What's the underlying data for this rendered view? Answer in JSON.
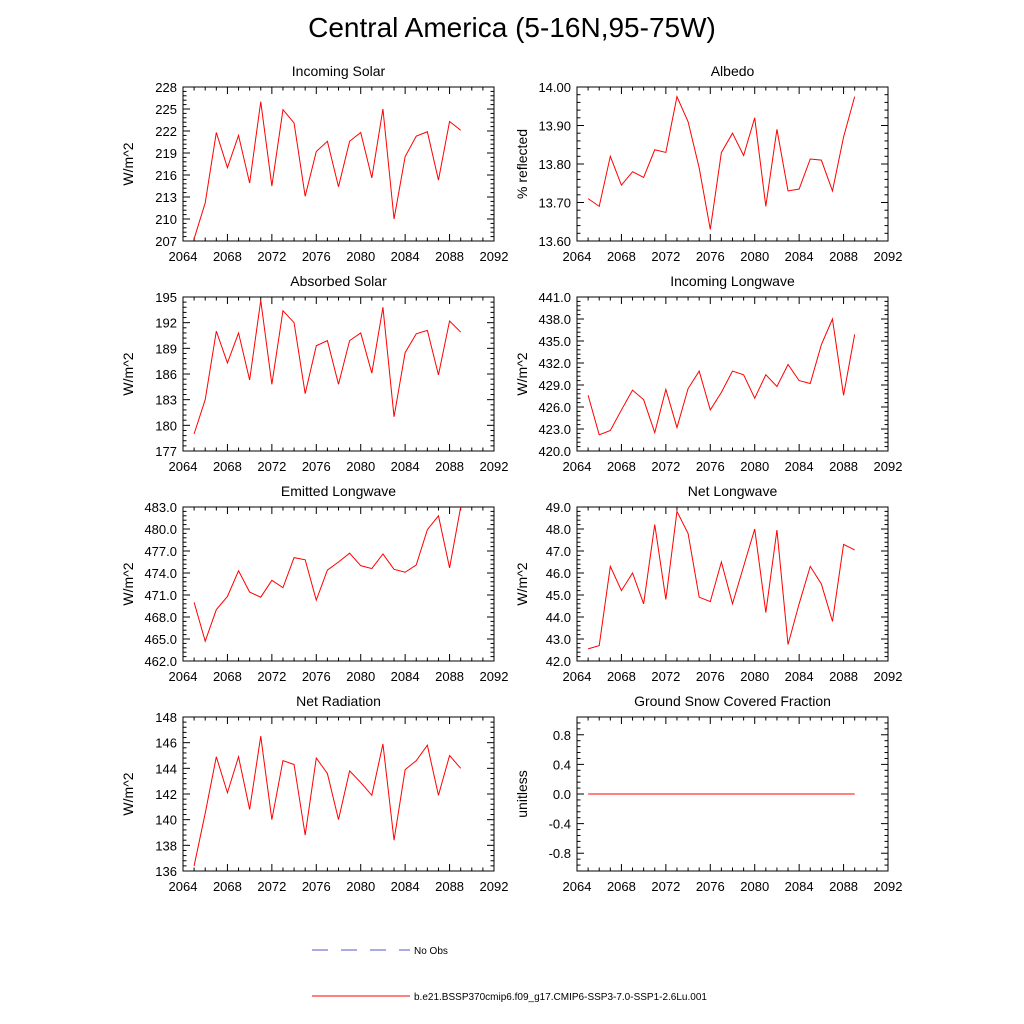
{
  "title": "Central America (5-16N,95-75W)",
  "colors": {
    "model": "#ff0000",
    "obs": "#5555cc",
    "axis": "#000000"
  },
  "legend": {
    "obs_label": "No Obs",
    "model_label": "b.e21.BSSP370cmip6.f09_g17.CMIP6-SSP3-7.0-SSP1-2.6Lu.001"
  },
  "chart_data": [
    {
      "type": "line",
      "title": "Incoming Solar",
      "ylabel": "W/m^2",
      "xlim": [
        2064,
        2092
      ],
      "ylim": [
        207,
        228
      ],
      "xticks": [
        2064,
        2068,
        2072,
        2076,
        2080,
        2084,
        2088,
        2092
      ],
      "yticks": [
        207,
        210,
        213,
        216,
        219,
        222,
        225,
        228
      ],
      "ytick_decimals": 0,
      "x": [
        2065,
        2066,
        2067,
        2068,
        2069,
        2070,
        2071,
        2072,
        2073,
        2074,
        2075,
        2076,
        2077,
        2078,
        2079,
        2080,
        2081,
        2082,
        2083,
        2084,
        2085,
        2086,
        2087,
        2088,
        2089
      ],
      "values": [
        207.3,
        212.2,
        221.8,
        217.0,
        221.4,
        214.9,
        226.0,
        214.5,
        224.9,
        223.1,
        213.1,
        219.2,
        220.6,
        214.4,
        220.6,
        221.8,
        215.6,
        225.0,
        210.0,
        218.5,
        221.3,
        221.9,
        215.3,
        223.3,
        222.1
      ]
    },
    {
      "type": "line",
      "title": "Albedo",
      "ylabel": "% reflected",
      "xlim": [
        2064,
        2092
      ],
      "ylim": [
        13.6,
        14.0
      ],
      "xticks": [
        2064,
        2068,
        2072,
        2076,
        2080,
        2084,
        2088,
        2092
      ],
      "yticks": [
        13.6,
        13.7,
        13.8,
        13.9,
        14.0
      ],
      "ytick_decimals": 2,
      "x": [
        2065,
        2066,
        2067,
        2068,
        2069,
        2070,
        2071,
        2072,
        2073,
        2074,
        2075,
        2076,
        2077,
        2078,
        2079,
        2080,
        2081,
        2082,
        2083,
        2084,
        2085,
        2086,
        2087,
        2088,
        2089
      ],
      "values": [
        13.71,
        13.69,
        13.82,
        13.745,
        13.78,
        13.765,
        13.837,
        13.83,
        13.975,
        13.91,
        13.79,
        13.63,
        13.83,
        13.88,
        13.822,
        13.92,
        13.69,
        13.89,
        13.73,
        13.735,
        13.813,
        13.81,
        13.73,
        13.87,
        13.975
      ]
    },
    {
      "type": "line",
      "title": "Absorbed Solar",
      "ylabel": "W/m^2",
      "xlim": [
        2064,
        2092
      ],
      "ylim": [
        177,
        195
      ],
      "xticks": [
        2064,
        2068,
        2072,
        2076,
        2080,
        2084,
        2088,
        2092
      ],
      "yticks": [
        177,
        180,
        183,
        186,
        189,
        192,
        195
      ],
      "ytick_decimals": 0,
      "x": [
        2065,
        2066,
        2067,
        2068,
        2069,
        2070,
        2071,
        2072,
        2073,
        2074,
        2075,
        2076,
        2077,
        2078,
        2079,
        2080,
        2081,
        2082,
        2083,
        2084,
        2085,
        2086,
        2087,
        2088,
        2089
      ],
      "values": [
        179.0,
        183.0,
        191.0,
        187.3,
        190.8,
        185.3,
        194.6,
        184.8,
        193.4,
        192.0,
        183.7,
        189.3,
        189.9,
        184.8,
        189.9,
        190.8,
        186.1,
        193.8,
        181.0,
        188.5,
        190.7,
        191.1,
        185.9,
        192.2,
        190.9
      ]
    },
    {
      "type": "line",
      "title": "Incoming Longwave",
      "ylabel": "W/m^2",
      "xlim": [
        2064,
        2092
      ],
      "ylim": [
        420.0,
        441.0
      ],
      "xticks": [
        2064,
        2068,
        2072,
        2076,
        2080,
        2084,
        2088,
        2092
      ],
      "yticks": [
        420,
        423,
        426,
        429,
        432,
        435,
        438,
        441
      ],
      "ytick_decimals": 1,
      "x": [
        2065,
        2066,
        2067,
        2068,
        2069,
        2070,
        2071,
        2072,
        2073,
        2074,
        2075,
        2076,
        2077,
        2078,
        2079,
        2080,
        2081,
        2082,
        2083,
        2084,
        2085,
        2086,
        2087,
        2088,
        2089
      ],
      "values": [
        427.6,
        422.2,
        422.8,
        425.6,
        428.3,
        427.0,
        422.5,
        428.4,
        423.2,
        428.5,
        430.9,
        425.6,
        428.0,
        430.9,
        430.4,
        427.2,
        430.4,
        428.8,
        431.8,
        429.6,
        429.2,
        434.5,
        438.0,
        427.6,
        435.9
      ]
    },
    {
      "type": "line",
      "title": "Emitted Longwave",
      "ylabel": "W/m^2",
      "xlim": [
        2064,
        2092
      ],
      "ylim": [
        462.0,
        483.0
      ],
      "xticks": [
        2064,
        2068,
        2072,
        2076,
        2080,
        2084,
        2088,
        2092
      ],
      "yticks": [
        462,
        465,
        468,
        471,
        474,
        477,
        480,
        483
      ],
      "ytick_decimals": 1,
      "x": [
        2065,
        2066,
        2067,
        2068,
        2069,
        2070,
        2071,
        2072,
        2073,
        2074,
        2075,
        2076,
        2077,
        2078,
        2079,
        2080,
        2081,
        2082,
        2083,
        2084,
        2085,
        2086,
        2087,
        2088,
        2089
      ],
      "values": [
        470.0,
        464.7,
        469.0,
        470.8,
        474.3,
        471.4,
        470.7,
        473.0,
        472.0,
        476.1,
        475.8,
        470.3,
        474.4,
        475.5,
        476.7,
        475.0,
        474.6,
        476.6,
        474.5,
        474.1,
        475.1,
        479.9,
        481.8,
        474.7,
        483.0
      ]
    },
    {
      "type": "line",
      "title": "Net Longwave",
      "ylabel": "W/m^2",
      "xlim": [
        2064,
        2092
      ],
      "ylim": [
        42.0,
        49.0
      ],
      "xticks": [
        2064,
        2068,
        2072,
        2076,
        2080,
        2084,
        2088,
        2092
      ],
      "yticks": [
        42,
        43,
        44,
        45,
        46,
        47,
        48,
        49
      ],
      "ytick_decimals": 1,
      "x": [
        2065,
        2066,
        2067,
        2068,
        2069,
        2070,
        2071,
        2072,
        2073,
        2074,
        2075,
        2076,
        2077,
        2078,
        2079,
        2080,
        2081,
        2082,
        2083,
        2084,
        2085,
        2086,
        2087,
        2088,
        2089
      ],
      "values": [
        42.55,
        42.7,
        46.3,
        45.2,
        46.0,
        44.6,
        48.2,
        44.8,
        48.8,
        47.8,
        44.9,
        44.7,
        46.5,
        44.6,
        46.3,
        48.0,
        44.2,
        47.95,
        42.75,
        44.6,
        46.3,
        45.5,
        43.8,
        47.3,
        47.05
      ]
    },
    {
      "type": "line",
      "title": "Net Radiation",
      "ylabel": "W/m^2",
      "xlim": [
        2064,
        2092
      ],
      "ylim": [
        136,
        148
      ],
      "xticks": [
        2064,
        2068,
        2072,
        2076,
        2080,
        2084,
        2088,
        2092
      ],
      "yticks": [
        136,
        138,
        140,
        142,
        144,
        146,
        148
      ],
      "ytick_decimals": 0,
      "x": [
        2065,
        2066,
        2067,
        2068,
        2069,
        2070,
        2071,
        2072,
        2073,
        2074,
        2075,
        2076,
        2077,
        2078,
        2079,
        2080,
        2081,
        2082,
        2083,
        2084,
        2085,
        2086,
        2087,
        2088,
        2089
      ],
      "values": [
        136.4,
        140.5,
        144.9,
        142.1,
        144.9,
        140.8,
        146.5,
        140.0,
        144.6,
        144.3,
        138.8,
        144.8,
        143.6,
        140.0,
        143.8,
        142.9,
        141.9,
        145.9,
        138.4,
        143.9,
        144.6,
        145.8,
        141.9,
        145.0,
        144.0
      ]
    },
    {
      "type": "line",
      "title": "Ground Snow Covered Fraction",
      "ylabel": "unitless",
      "xlim": [
        2064,
        2092
      ],
      "ylim": [
        -1.04,
        1.04
      ],
      "xticks": [
        2064,
        2068,
        2072,
        2076,
        2080,
        2084,
        2088,
        2092
      ],
      "yticks": [
        -0.8,
        -0.4,
        0.0,
        0.4,
        0.8
      ],
      "ytick_decimals": 1,
      "x": [
        2065,
        2066,
        2067,
        2068,
        2069,
        2070,
        2071,
        2072,
        2073,
        2074,
        2075,
        2076,
        2077,
        2078,
        2079,
        2080,
        2081,
        2082,
        2083,
        2084,
        2085,
        2086,
        2087,
        2088,
        2089
      ],
      "values": [
        0,
        0,
        0,
        0,
        0,
        0,
        0,
        0,
        0,
        0,
        0,
        0,
        0,
        0,
        0,
        0,
        0,
        0,
        0,
        0,
        0,
        0,
        0,
        0,
        0
      ]
    }
  ]
}
